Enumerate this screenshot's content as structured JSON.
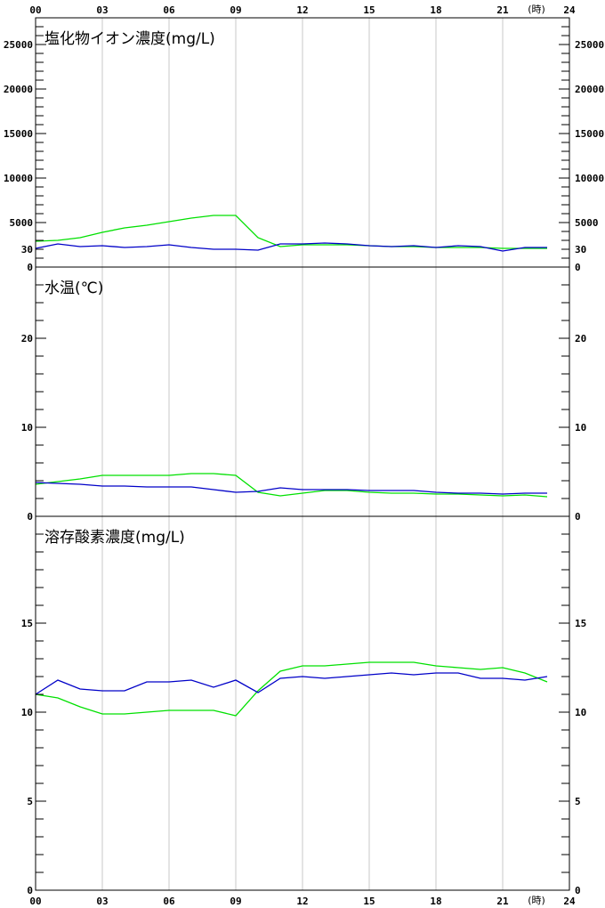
{
  "x_axis": {
    "tick_labels": [
      "00",
      "03",
      "06",
      "09",
      "12",
      "15",
      "18",
      "21",
      "24"
    ],
    "tick_hours": [
      0,
      3,
      6,
      9,
      12,
      15,
      18,
      21,
      24
    ],
    "unit_label": "(時)",
    "range": [
      0,
      24
    ]
  },
  "colors": {
    "series_a": "#00e000",
    "series_b": "#0000c8",
    "grid": "#c8c8c8",
    "axis": "#000000"
  },
  "chart_data": [
    {
      "type": "line",
      "title": "塩化物イオン濃度(mg/L)",
      "ylim": [
        0,
        28000
      ],
      "y_ticks": [
        0,
        5000,
        10000,
        15000,
        20000,
        25000
      ],
      "y_tick_labels": [
        "0",
        "5000",
        "10000",
        "15000",
        "20000",
        "25000"
      ],
      "minor_step": 1000,
      "x": [
        0,
        1,
        2,
        3,
        4,
        5,
        6,
        7,
        8,
        9,
        10,
        11,
        12,
        13,
        14,
        15,
        16,
        17,
        18,
        19,
        20,
        21,
        22,
        23
      ],
      "series": [
        {
          "color": "#00e000",
          "values": [
            2900,
            3000,
            3300,
            3900,
            4400,
            4700,
            5100,
            5500,
            5800,
            5800,
            3300,
            2300,
            2500,
            2500,
            2500,
            2400,
            2300,
            2300,
            2200,
            2200,
            2200,
            2100,
            2100,
            2100
          ]
        },
        {
          "color": "#0000c8",
          "values": [
            2100,
            2600,
            2300,
            2400,
            2200,
            2300,
            2500,
            2200,
            2000,
            2000,
            1900,
            2600,
            2600,
            2700,
            2600,
            2400,
            2300,
            2400,
            2200,
            2400,
            2300,
            1800,
            2200,
            2200
          ]
        }
      ]
    },
    {
      "type": "line",
      "title": "水温(℃)",
      "ylim": [
        0,
        28
      ],
      "y_ticks": [
        0,
        10,
        20,
        30
      ],
      "y_tick_labels": [
        "0",
        "10",
        "20",
        "30"
      ],
      "minor_step": 2,
      "tick_max": 38,
      "x": [
        0,
        1,
        2,
        3,
        4,
        5,
        6,
        7,
        8,
        9,
        10,
        11,
        12,
        13,
        14,
        15,
        16,
        17,
        18,
        19,
        20,
        21,
        22,
        23
      ],
      "series": [
        {
          "color": "#00e000",
          "values": [
            3.6,
            3.9,
            4.2,
            4.6,
            4.6,
            4.6,
            4.6,
            4.8,
            4.8,
            4.6,
            2.7,
            2.3,
            2.6,
            2.9,
            2.9,
            2.7,
            2.6,
            2.6,
            2.5,
            2.5,
            2.4,
            2.3,
            2.4,
            2.2
          ]
        },
        {
          "color": "#0000c8",
          "values": [
            3.8,
            3.7,
            3.6,
            3.4,
            3.4,
            3.3,
            3.3,
            3.3,
            3.0,
            2.7,
            2.8,
            3.2,
            3.0,
            3.0,
            3.0,
            2.9,
            2.9,
            2.9,
            2.7,
            2.6,
            2.6,
            2.5,
            2.6,
            2.6
          ]
        }
      ]
    },
    {
      "type": "line",
      "title": "溶存酸素濃度(mg/L)",
      "ylim": [
        0,
        21
      ],
      "y_ticks": [
        0,
        5,
        10,
        15
      ],
      "y_tick_labels": [
        "0",
        "5",
        "10",
        "15"
      ],
      "minor_step": 1,
      "tick_max": 20,
      "x": [
        0,
        1,
        2,
        3,
        4,
        5,
        6,
        7,
        8,
        9,
        10,
        11,
        12,
        13,
        14,
        15,
        16,
        17,
        18,
        19,
        20,
        21,
        22,
        23
      ],
      "series": [
        {
          "color": "#00e000",
          "values": [
            11.0,
            10.8,
            10.3,
            9.9,
            9.9,
            10.0,
            10.1,
            10.1,
            10.1,
            9.8,
            11.2,
            12.3,
            12.6,
            12.6,
            12.7,
            12.8,
            12.8,
            12.8,
            12.6,
            12.5,
            12.4,
            12.5,
            12.2,
            11.7
          ]
        },
        {
          "color": "#0000c8",
          "values": [
            11.0,
            11.8,
            11.3,
            11.2,
            11.2,
            11.7,
            11.7,
            11.8,
            11.4,
            11.8,
            11.1,
            11.9,
            12.0,
            11.9,
            12.0,
            12.1,
            12.2,
            12.1,
            12.2,
            12.2,
            11.9,
            11.9,
            11.8,
            12.0
          ]
        }
      ]
    }
  ]
}
